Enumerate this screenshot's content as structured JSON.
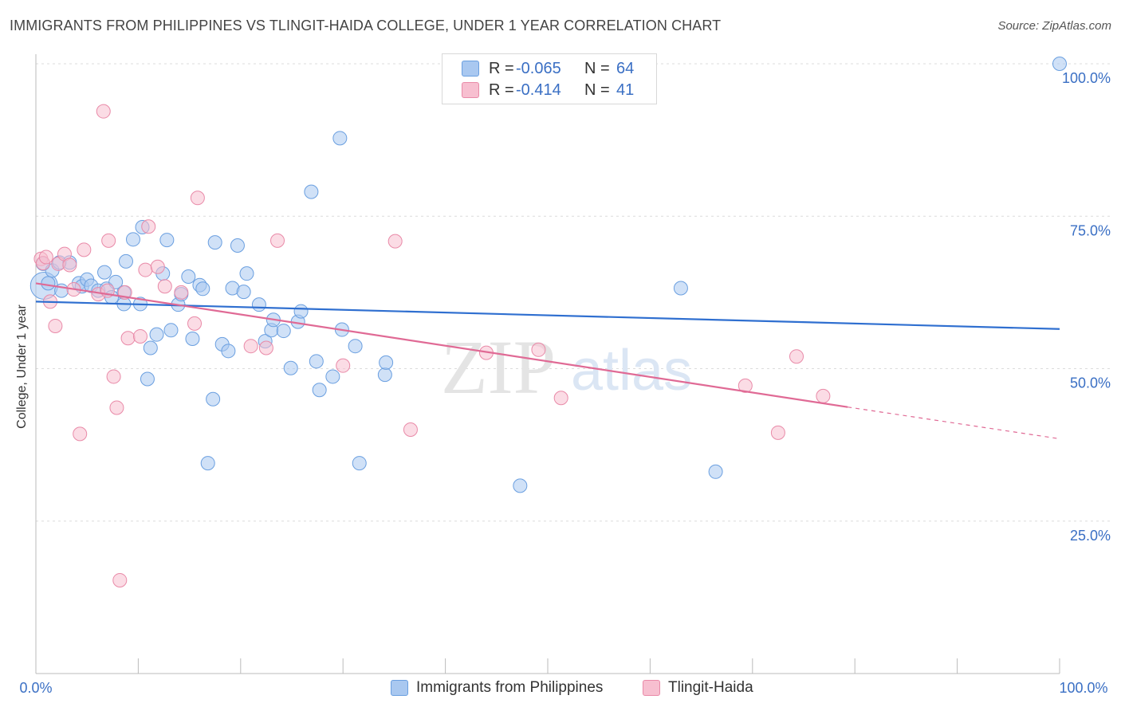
{
  "title": "IMMIGRANTS FROM PHILIPPINES VS TLINGIT-HAIDA COLLEGE, UNDER 1 YEAR CORRELATION CHART",
  "source": "Source: ZipAtlas.com",
  "watermark": {
    "zip": "ZIP",
    "atlas": "atlas"
  },
  "stats": [
    {
      "r_label": "R =",
      "r_value": "-0.065",
      "n_label": "N =",
      "n_value": "64",
      "color": "#a9c8f0",
      "border": "#6a9fe0"
    },
    {
      "r_label": "R =",
      "r_value": "-0.414",
      "n_label": "N =",
      "n_value": "41",
      "color": "#f7bfd0",
      "border": "#e98aa8"
    }
  ],
  "legend": [
    {
      "label": "Immigrants from Philippines",
      "color": "#a9c8f0",
      "border": "#6a9fe0"
    },
    {
      "label": "Tlingit-Haida",
      "color": "#f7bfd0",
      "border": "#e98aa8"
    }
  ],
  "chart_data": {
    "type": "scatter",
    "ylabel": "College, Under 1 year",
    "xlim": [
      0,
      100
    ],
    "ylim": [
      0,
      100
    ],
    "x_tick_labels": [
      "0.0%",
      "100.0%"
    ],
    "y_ticks": [
      25,
      50,
      75,
      100
    ],
    "y_tick_labels": [
      "25.0%",
      "50.0%",
      "75.0%",
      "100.0%"
    ],
    "grid": true,
    "series": [
      {
        "name": "Immigrants from Philippines",
        "color": "#6a9fe0",
        "fill": "#a9c8f0",
        "trend": {
          "x": [
            0,
            100
          ],
          "y": [
            61.0,
            56.5
          ]
        },
        "points": [
          [
            0.7,
            67.2
          ],
          [
            1.6,
            66.1
          ],
          [
            2.3,
            67.4
          ],
          [
            2.5,
            62.8
          ],
          [
            3.3,
            67.4
          ],
          [
            4.2,
            64.0
          ],
          [
            4.5,
            63.5
          ],
          [
            5.0,
            64.6
          ],
          [
            5.4,
            63.6
          ],
          [
            6.1,
            62.8
          ],
          [
            6.7,
            65.8
          ],
          [
            6.9,
            63.1
          ],
          [
            7.4,
            61.7
          ],
          [
            7.8,
            64.2
          ],
          [
            8.6,
            62.5
          ],
          [
            8.6,
            60.6
          ],
          [
            8.8,
            67.6
          ],
          [
            9.5,
            71.2
          ],
          [
            10.2,
            60.6
          ],
          [
            10.4,
            73.2
          ],
          [
            10.9,
            48.3
          ],
          [
            11.2,
            53.4
          ],
          [
            11.8,
            55.6
          ],
          [
            12.4,
            65.6
          ],
          [
            12.8,
            71.1
          ],
          [
            13.2,
            56.3
          ],
          [
            13.9,
            60.5
          ],
          [
            14.2,
            62.2
          ],
          [
            14.9,
            65.1
          ],
          [
            15.3,
            54.9
          ],
          [
            16.0,
            63.7
          ],
          [
            16.3,
            63.1
          ],
          [
            16.8,
            34.5
          ],
          [
            17.3,
            45.0
          ],
          [
            17.5,
            70.7
          ],
          [
            18.2,
            54.0
          ],
          [
            18.8,
            52.9
          ],
          [
            19.2,
            63.2
          ],
          [
            19.7,
            70.2
          ],
          [
            20.3,
            62.6
          ],
          [
            20.6,
            65.6
          ],
          [
            21.8,
            60.5
          ],
          [
            22.4,
            54.5
          ],
          [
            23.0,
            56.3
          ],
          [
            23.2,
            58.0
          ],
          [
            24.2,
            56.2
          ],
          [
            24.9,
            50.1
          ],
          [
            25.6,
            57.7
          ],
          [
            25.9,
            59.4
          ],
          [
            26.9,
            79.0
          ],
          [
            27.4,
            51.2
          ],
          [
            27.7,
            46.5
          ],
          [
            29.0,
            48.7
          ],
          [
            29.7,
            87.8
          ],
          [
            29.9,
            56.4
          ],
          [
            31.2,
            53.7
          ],
          [
            31.6,
            34.5
          ],
          [
            34.1,
            49.0
          ],
          [
            34.2,
            51.0
          ],
          [
            47.3,
            30.8
          ],
          [
            63.0,
            63.2
          ],
          [
            66.4,
            33.1
          ],
          [
            100.0,
            100.0
          ],
          [
            1.2,
            64.0
          ]
        ]
      },
      {
        "name": "Tlingit-Haida",
        "color": "#e98aa8",
        "fill": "#f7bfd0",
        "trend": {
          "x": [
            0,
            79.3
          ],
          "y": [
            64.0,
            43.7
          ]
        },
        "trend_dashed": {
          "x": [
            79.3,
            100
          ],
          "y": [
            43.7,
            38.5
          ]
        },
        "points": [
          [
            0.5,
            68.0
          ],
          [
            0.7,
            67.3
          ],
          [
            1.0,
            68.3
          ],
          [
            1.4,
            61.0
          ],
          [
            1.9,
            57.0
          ],
          [
            2.2,
            67.2
          ],
          [
            2.8,
            68.8
          ],
          [
            3.3,
            67.0
          ],
          [
            3.7,
            63.0
          ],
          [
            4.3,
            39.3
          ],
          [
            4.7,
            69.5
          ],
          [
            6.1,
            62.2
          ],
          [
            6.6,
            92.2
          ],
          [
            7.0,
            62.8
          ],
          [
            7.1,
            71.0
          ],
          [
            7.6,
            48.7
          ],
          [
            7.9,
            43.6
          ],
          [
            8.2,
            15.3
          ],
          [
            8.7,
            62.5
          ],
          [
            9.0,
            55.0
          ],
          [
            10.2,
            55.3
          ],
          [
            10.7,
            66.2
          ],
          [
            11.0,
            73.3
          ],
          [
            11.9,
            66.7
          ],
          [
            12.6,
            63.5
          ],
          [
            14.2,
            62.5
          ],
          [
            15.5,
            57.4
          ],
          [
            15.8,
            78.0
          ],
          [
            21.0,
            53.7
          ],
          [
            22.5,
            53.4
          ],
          [
            23.6,
            71.0
          ],
          [
            30.0,
            50.5
          ],
          [
            35.1,
            70.9
          ],
          [
            36.6,
            40.0
          ],
          [
            44.0,
            52.6
          ],
          [
            49.1,
            53.1
          ],
          [
            51.3,
            45.2
          ],
          [
            69.3,
            47.2
          ],
          [
            72.5,
            39.5
          ],
          [
            74.3,
            52.0
          ],
          [
            76.9,
            45.5
          ]
        ]
      }
    ]
  }
}
